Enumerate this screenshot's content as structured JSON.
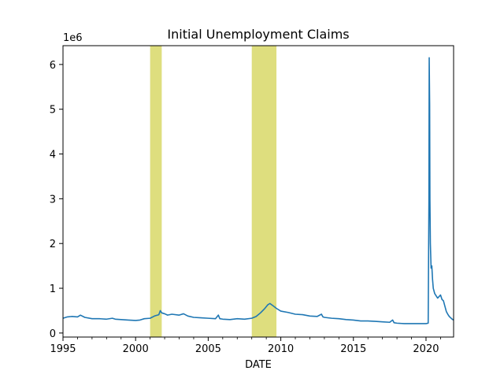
{
  "chart_data": {
    "type": "line",
    "title": "Initial Unemployment Claims",
    "xlabel": "DATE",
    "ylabel": "",
    "y_offset_label": "1e6",
    "xlim": [
      1995.0,
      2021.9
    ],
    "ylim": [
      -0.09,
      6.42
    ],
    "x_ticks": [
      1995,
      2000,
      2005,
      2010,
      2015,
      2020
    ],
    "x_tick_labels": [
      "1995",
      "2000",
      "2005",
      "2010",
      "2015",
      "2020"
    ],
    "x_minor_ticks": [
      1996,
      1997,
      1998,
      1999,
      2001,
      2002,
      2003,
      2004,
      2006,
      2007,
      2008,
      2009,
      2011,
      2012,
      2013,
      2014,
      2016,
      2017,
      2018,
      2019,
      2021
    ],
    "y_ticks": [
      0,
      1,
      2,
      3,
      4,
      5,
      6
    ],
    "y_tick_labels": [
      "0",
      "1",
      "2",
      "3",
      "4",
      "5",
      "6"
    ],
    "grid": false,
    "recession_color": "#dede7e",
    "line_color": "#1f77b4",
    "recessions": [
      {
        "start": 2001.0,
        "end": 2001.8
      },
      {
        "start": 2008.0,
        "end": 2009.7
      }
    ],
    "series": [
      {
        "x": [
          1995.0,
          1995.3,
          1995.6,
          1996.0,
          1996.2,
          1996.5,
          1997.0,
          1997.5,
          1998.0,
          1998.4,
          1998.6,
          1999.0,
          1999.5,
          2000.0,
          2000.3,
          2000.6,
          2001.0,
          2001.3,
          2001.6,
          2001.7,
          2001.8,
          2002.0,
          2002.2,
          2002.5,
          2003.0,
          2003.3,
          2003.6,
          2004.0,
          2004.5,
          2005.0,
          2005.5,
          2005.7,
          2005.8,
          2006.0,
          2006.5,
          2007.0,
          2007.5,
          2008.0,
          2008.3,
          2008.6,
          2008.9,
          2009.1,
          2009.25,
          2009.5,
          2009.7,
          2010.0,
          2010.5,
          2011.0,
          2011.5,
          2012.0,
          2012.5,
          2012.8,
          2012.9,
          2013.0,
          2013.5,
          2014.0,
          2014.5,
          2015.0,
          2015.5,
          2016.0,
          2016.5,
          2017.0,
          2017.5,
          2017.7,
          2017.8,
          2018.0,
          2018.5,
          2019.0,
          2019.5,
          2020.0,
          2020.15,
          2020.2,
          2020.22,
          2020.25,
          2020.27,
          2020.3,
          2020.35,
          2020.4,
          2020.45,
          2020.5,
          2020.6,
          2020.7,
          2020.8,
          2021.0,
          2021.1,
          2021.2,
          2021.3,
          2021.4,
          2021.5,
          2021.6,
          2021.7,
          2021.8,
          2021.9
        ],
        "y": [
          0.33,
          0.36,
          0.37,
          0.36,
          0.4,
          0.35,
          0.32,
          0.32,
          0.31,
          0.33,
          0.31,
          0.3,
          0.29,
          0.28,
          0.29,
          0.32,
          0.33,
          0.38,
          0.41,
          0.5,
          0.45,
          0.43,
          0.4,
          0.42,
          0.4,
          0.43,
          0.38,
          0.35,
          0.34,
          0.33,
          0.32,
          0.4,
          0.32,
          0.31,
          0.3,
          0.32,
          0.31,
          0.33,
          0.37,
          0.45,
          0.55,
          0.63,
          0.66,
          0.6,
          0.55,
          0.49,
          0.46,
          0.42,
          0.41,
          0.38,
          0.37,
          0.42,
          0.36,
          0.35,
          0.33,
          0.32,
          0.3,
          0.29,
          0.27,
          0.27,
          0.26,
          0.25,
          0.24,
          0.29,
          0.23,
          0.22,
          0.21,
          0.21,
          0.21,
          0.21,
          0.22,
          2.91,
          6.15,
          5.1,
          3.0,
          2.0,
          1.45,
          1.5,
          1.2,
          1.0,
          0.88,
          0.83,
          0.78,
          0.85,
          0.75,
          0.72,
          0.6,
          0.48,
          0.42,
          0.37,
          0.34,
          0.31,
          0.29
        ]
      }
    ]
  }
}
